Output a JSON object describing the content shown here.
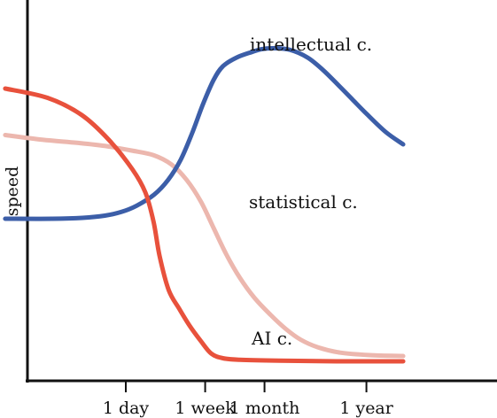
{
  "chart_data": {
    "type": "line",
    "title": "",
    "xlabel": "",
    "ylabel": "speed",
    "x_scale": "log",
    "x_ticks": [
      {
        "label": "1 day",
        "value": 1
      },
      {
        "label": "1 week",
        "value": 7
      },
      {
        "label": "1 month",
        "value": 30
      },
      {
        "label": "1 year",
        "value": 365
      }
    ],
    "y_ticks": [],
    "grid": false,
    "legend": "none",
    "series": [
      {
        "name": "intellectual c.",
        "color": "#3c5ea8",
        "x": [
          0.052,
          0.165,
          0.345,
          0.598,
          0.898,
          1.304,
          2.008,
          2.817,
          3.839,
          5.068,
          6.606,
          8.615,
          10.814,
          15.134,
          22.036,
          27.8,
          36.88,
          55.92,
          86.2,
          125.7,
          184.8,
          258.6,
          362.1,
          584.9,
          898.5
        ],
        "values": [
          0.48,
          0.48,
          0.483,
          0.49,
          0.502,
          0.522,
          0.558,
          0.605,
          0.67,
          0.755,
          0.848,
          0.928,
          0.972,
          1.0,
          1.018,
          1.027,
          1.03,
          1.025,
          1.0,
          0.96,
          0.91,
          0.865,
          0.82,
          0.76,
          0.72
        ]
      },
      {
        "name": "statistical c.",
        "color": "#ecb7ae",
        "x": [
          0.052,
          0.129,
          0.303,
          0.598,
          1.153,
          1.976,
          3.067,
          4.452,
          6.313,
          8.615,
          11.76,
          16.35,
          23.42,
          34.77,
          50.3,
          72.7,
          111.6,
          191.8,
          395.1,
          898.5
        ],
        "values": [
          0.75,
          0.735,
          0.725,
          0.715,
          0.7,
          0.685,
          0.655,
          0.605,
          0.535,
          0.45,
          0.365,
          0.29,
          0.225,
          0.17,
          0.125,
          0.09,
          0.065,
          0.048,
          0.04,
          0.037
        ]
      },
      {
        "name": "AI c.",
        "color": "#e8513c",
        "x": [
          0.052,
          0.147,
          0.338,
          0.658,
          1.172,
          1.615,
          1.976,
          2.289,
          2.862,
          3.699,
          4.78,
          6.313,
          8.133,
          10.814,
          16.35,
          42.76,
          175.1,
          898.5
        ],
        "values": [
          0.9,
          0.87,
          0.815,
          0.735,
          0.64,
          0.565,
          0.47,
          0.36,
          0.25,
          0.19,
          0.135,
          0.085,
          0.045,
          0.03,
          0.025,
          0.022,
          0.02,
          0.02
        ]
      }
    ]
  }
}
